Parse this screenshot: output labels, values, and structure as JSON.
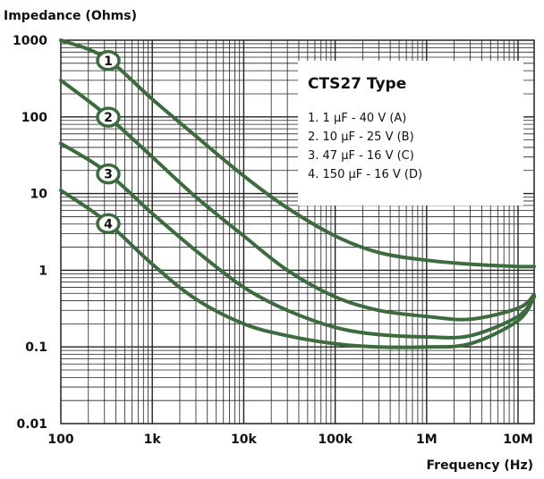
{
  "chart_data": {
    "type": "line",
    "x_scale": "log",
    "y_scale": "log",
    "xlim": [
      100,
      15000000
    ],
    "ylim": [
      0.01,
      1000
    ],
    "ylabel": "Impedance (Ohms)",
    "xlabel": "Frequency (Hz)",
    "x_ticks": [
      {
        "value": 100,
        "label": "100"
      },
      {
        "value": 1000,
        "label": "1k"
      },
      {
        "value": 10000,
        "label": "10k"
      },
      {
        "value": 100000,
        "label": "100k"
      },
      {
        "value": 1000000,
        "label": "1M"
      },
      {
        "value": 10000000,
        "label": "10M"
      }
    ],
    "y_ticks": [
      {
        "value": 1000,
        "label": "1000"
      },
      {
        "value": 100,
        "label": "100"
      },
      {
        "value": 10,
        "label": "10"
      },
      {
        "value": 1,
        "label": "1"
      },
      {
        "value": 0.1,
        "label": "0.1"
      },
      {
        "value": 0.01,
        "label": "0.01"
      }
    ],
    "grid": true,
    "legend": {
      "title": "CTS27 Type",
      "items": [
        "1.    1 μF - 40 V (A)",
        "2.  10 μF - 25 V (B)",
        "3.  47 μF - 16 V (C)",
        "4. 150 μF - 16 V (D)"
      ]
    },
    "line_color": "#3c6b3e",
    "series": [
      {
        "marker": "1",
        "x": [
          100,
          300,
          1000,
          3000,
          10000,
          30000,
          100000,
          300000,
          1000000,
          3000000,
          10000000,
          15000000
        ],
        "y": [
          1000,
          600,
          170,
          56,
          17,
          6.5,
          2.8,
          1.7,
          1.35,
          1.2,
          1.12,
          1.12
        ]
      },
      {
        "marker": "2",
        "x": [
          100,
          300,
          1000,
          3000,
          10000,
          30000,
          100000,
          300000,
          1000000,
          3000000,
          10000000,
          15000000
        ],
        "y": [
          300,
          110,
          30,
          9,
          2.8,
          1,
          0.45,
          0.3,
          0.25,
          0.23,
          0.32,
          0.48
        ]
      },
      {
        "marker": "3",
        "x": [
          100,
          300,
          1000,
          3000,
          10000,
          30000,
          100000,
          300000,
          1000000,
          3000000,
          10000000,
          15000000
        ],
        "y": [
          45,
          20,
          5.5,
          1.8,
          0.6,
          0.3,
          0.18,
          0.145,
          0.135,
          0.14,
          0.25,
          0.45
        ]
      },
      {
        "marker": "4",
        "x": [
          100,
          300,
          1000,
          3000,
          10000,
          30000,
          100000,
          300000,
          1000000,
          3000000,
          10000000,
          15000000
        ],
        "y": [
          11,
          4.5,
          1.2,
          0.42,
          0.2,
          0.14,
          0.11,
          0.1,
          0.1,
          0.11,
          0.22,
          0.45
        ]
      }
    ]
  }
}
